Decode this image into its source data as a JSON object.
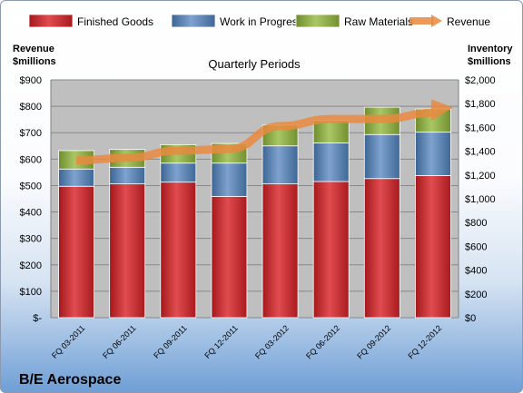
{
  "company": "B/E Aerospace",
  "chart_data": {
    "type": "bar",
    "subtype": "stacked-bar-with-line",
    "title": "Quarterly Periods",
    "categories": [
      "FQ 03-2011",
      "FQ 06-2011",
      "FQ 09-2011",
      "FQ 12-2011",
      "FQ 03-2012",
      "FQ 06-2012",
      "FQ 09-2012",
      "FQ 12-2012"
    ],
    "series": [
      {
        "name": "Finished Goods",
        "axis": "right",
        "color": "#c0282d",
        "values": [
          1105,
          1125,
          1140,
          1020,
          1125,
          1145,
          1170,
          1195
        ]
      },
      {
        "name": "Work in Progress",
        "axis": "right",
        "color": "#4f81bd",
        "values": [
          145,
          140,
          160,
          280,
          320,
          325,
          370,
          365
        ]
      },
      {
        "name": "Raw Materials",
        "axis": "right",
        "color": "#8fb04b",
        "values": [
          155,
          150,
          155,
          165,
          175,
          190,
          230,
          195
        ]
      },
      {
        "name": "Revenue",
        "axis": "left",
        "type": "line",
        "color": "#e9893f",
        "values": [
          595,
          605,
          632,
          638,
          725,
          752,
          752,
          775
        ]
      }
    ],
    "left_axis": {
      "label_line1": "Revenue",
      "label_line2": "$millions",
      "ylim": [
        0,
        900
      ],
      "ticks": [
        "$-",
        "$100",
        "$200",
        "$300",
        "$400",
        "$500",
        "$600",
        "$700",
        "$800",
        "$900"
      ]
    },
    "right_axis": {
      "label_line1": "Inventory",
      "label_line2": "$millions",
      "ylim": [
        0,
        2000
      ],
      "ticks": [
        "$0",
        "$200",
        "$400",
        "$600",
        "$800",
        "$1,000",
        "$1,200",
        "$1,400",
        "$1,600",
        "$1,800",
        "$2,000"
      ]
    },
    "legend_position": "top",
    "grid": true
  },
  "colors": {
    "plot_bg": "#bfbfbf",
    "grid": "#888888"
  }
}
